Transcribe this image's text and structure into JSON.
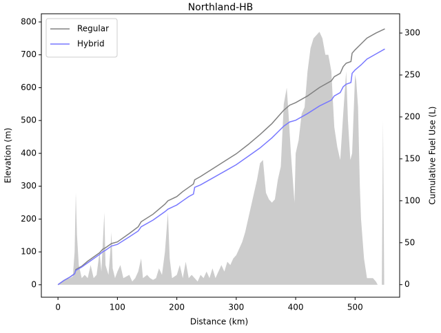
{
  "chart_data": {
    "type": "combo",
    "title": "Northland-HB",
    "xlabel": "Distance (km)",
    "ylabel": "Elevation (m)",
    "y2label": "Cumulative Fuel Use (L)",
    "xlim": [
      -28,
      575
    ],
    "ylim": [
      -38,
      825
    ],
    "y2lim": [
      -15,
      323
    ],
    "xticks": [
      0,
      100,
      200,
      300,
      400,
      500
    ],
    "yticks": [
      0,
      100,
      200,
      300,
      400,
      500,
      600,
      700,
      800
    ],
    "y2ticks": [
      0,
      50,
      100,
      150,
      200,
      250,
      300
    ],
    "legend": "upper-left",
    "series": [
      {
        "type": "area",
        "color": "#cccccc",
        "x": [
          0,
          5,
          10,
          20,
          25,
          28,
          30,
          32,
          35,
          40,
          45,
          50,
          55,
          60,
          65,
          70,
          73,
          78,
          80,
          85,
          88,
          90,
          92,
          96,
          100,
          105,
          110,
          115,
          120,
          125,
          130,
          135,
          140,
          143,
          150,
          155,
          160,
          165,
          170,
          175,
          180,
          185,
          188,
          192,
          200,
          205,
          210,
          215,
          220,
          225,
          230,
          235,
          240,
          245,
          250,
          255,
          260,
          265,
          270,
          275,
          280,
          285,
          290,
          295,
          300,
          305,
          310,
          315,
          320,
          325,
          330,
          335,
          340,
          345,
          350,
          355,
          360,
          365,
          370,
          375,
          380,
          385,
          388,
          392,
          398,
          400,
          405,
          410,
          415,
          420,
          425,
          430,
          435,
          440,
          445,
          450,
          455,
          460,
          465,
          470,
          475,
          480,
          485,
          488,
          492,
          495,
          500,
          502,
          505,
          508,
          510,
          515,
          520,
          530,
          535,
          538,
          545,
          547,
          549
        ],
        "values": [
          0,
          5,
          15,
          20,
          25,
          100,
          280,
          150,
          60,
          20,
          30,
          20,
          60,
          20,
          30,
          100,
          40,
          220,
          60,
          30,
          100,
          160,
          50,
          20,
          40,
          60,
          20,
          25,
          30,
          10,
          20,
          40,
          80,
          20,
          30,
          20,
          15,
          20,
          50,
          30,
          100,
          220,
          80,
          20,
          30,
          60,
          20,
          70,
          20,
          30,
          20,
          10,
          30,
          20,
          40,
          20,
          50,
          20,
          40,
          60,
          40,
          70,
          60,
          80,
          90,
          110,
          130,
          160,
          200,
          240,
          280,
          320,
          370,
          380,
          280,
          260,
          250,
          260,
          320,
          360,
          550,
          600,
          520,
          400,
          250,
          400,
          440,
          520,
          540,
          650,
          720,
          750,
          760,
          770,
          750,
          700,
          700,
          650,
          480,
          420,
          380,
          520,
          650,
          500,
          380,
          400,
          640,
          620,
          540,
          300,
          200,
          80,
          20,
          20,
          10,
          0,
          0,
          500,
          0
        ]
      },
      {
        "name": "Regular",
        "type": "line",
        "axis": "y2",
        "color": "#808080",
        "x": [
          0,
          10,
          20,
          28,
          30,
          40,
          50,
          60,
          70,
          75,
          80,
          90,
          100,
          120,
          135,
          140,
          160,
          180,
          185,
          200,
          210,
          220,
          228,
          230,
          240,
          260,
          280,
          300,
          320,
          340,
          360,
          370,
          380,
          390,
          400,
          420,
          440,
          460,
          465,
          475,
          480,
          485,
          493,
          495,
          500,
          510,
          520,
          535,
          550
        ],
        "values": [
          0,
          5,
          9,
          13,
          18,
          22,
          28,
          33,
          38,
          42,
          44,
          49,
          51,
          61,
          69,
          75,
          84,
          96,
          100,
          105,
          111,
          116,
          120,
          125,
          129,
          138,
          147,
          156,
          167,
          179,
          192,
          200,
          208,
          214,
          217,
          225,
          235,
          243,
          248,
          252,
          260,
          264,
          266,
          276,
          280,
          287,
          294,
          300,
          305
        ]
      },
      {
        "name": "Hybrid",
        "type": "line",
        "axis": "y2",
        "color": "#7777ff",
        "x": [
          0,
          10,
          20,
          28,
          30,
          40,
          50,
          60,
          70,
          75,
          80,
          90,
          100,
          120,
          135,
          140,
          160,
          180,
          185,
          200,
          210,
          220,
          228,
          230,
          240,
          260,
          280,
          300,
          320,
          340,
          360,
          370,
          380,
          390,
          400,
          420,
          440,
          460,
          465,
          475,
          480,
          485,
          493,
          495,
          500,
          510,
          520,
          535,
          550
        ],
        "values": [
          0,
          5,
          9,
          13,
          17,
          21,
          26,
          31,
          36,
          39,
          41,
          46,
          48,
          57,
          64,
          69,
          77,
          87,
          90,
          95,
          100,
          105,
          108,
          116,
          119,
          127,
          135,
          143,
          153,
          163,
          175,
          182,
          189,
          194,
          196,
          204,
          213,
          220,
          225,
          229,
          236,
          239,
          241,
          252,
          256,
          262,
          269,
          275,
          281
        ]
      }
    ]
  }
}
